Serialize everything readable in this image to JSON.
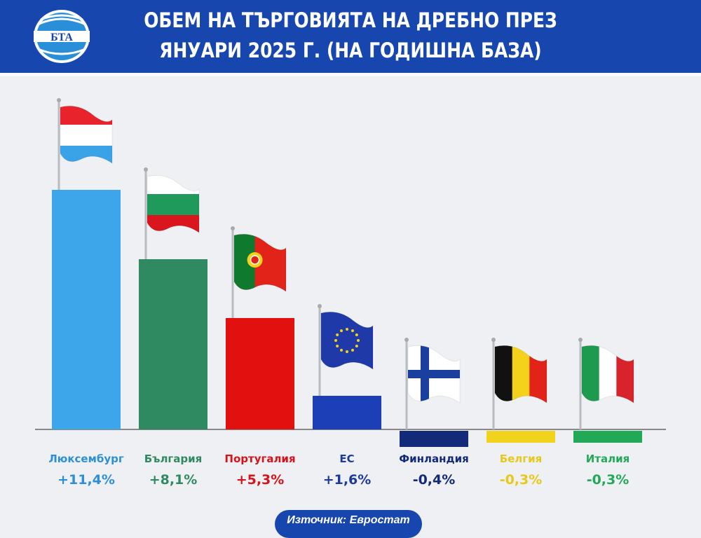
{
  "header": {
    "logo_text": "БТА",
    "title_line1": "ОБЕМ НА ТЪРГОВИЯТА НА ДРЕБНО ПРЕЗ",
    "title_line2": "ЯНУАРИ 2025 Г. (НА ГОДИШНА БАЗА)"
  },
  "chart_data": {
    "type": "bar",
    "title": "ОБЕМ НА ТЪРГОВИЯТА НА ДРЕБНО ПРЕЗ ЯНУАРИ 2025 Г. (НА ГОДИШНА БАЗА)",
    "categories": [
      "Люксембург",
      "България",
      "Португалия",
      "ЕС",
      "Финландия",
      "Белгия",
      "Италия"
    ],
    "values": [
      11.4,
      8.1,
      5.3,
      1.6,
      -0.4,
      -0.3,
      -0.3
    ],
    "value_labels": [
      "+11,4%",
      "+8,1%",
      "+5,3%",
      "+1,6%",
      "-0,4%",
      "-0,3%",
      "-0,3%"
    ],
    "unit": "%",
    "colors": [
      "#3da5ea",
      "#2f8a62",
      "#e2100f",
      "#1c3fb8",
      "#13297a",
      "#f1d21c",
      "#22a957"
    ],
    "label_colors": [
      "#2d8fd6",
      "#2f8a62",
      "#d8121a",
      "#1c3a9e",
      "#13297a",
      "#e8c81a",
      "#22a957"
    ],
    "flags": [
      "luxembourg-flag",
      "bulgaria-flag",
      "portugal-flag",
      "eu-flag",
      "finland-flag",
      "belgium-flag",
      "italy-flag"
    ],
    "grid": false,
    "legend": "none"
  },
  "footer": {
    "source": "Източник: Евростат"
  }
}
